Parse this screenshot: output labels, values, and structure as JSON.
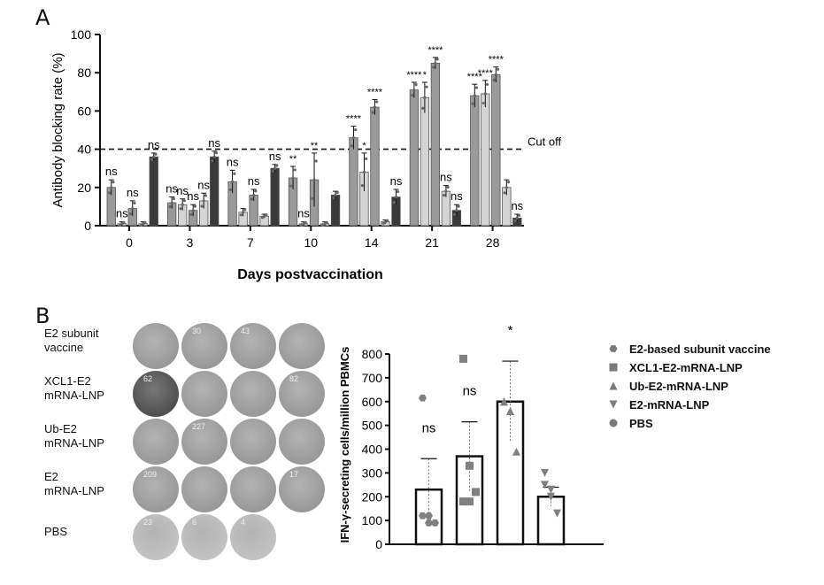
{
  "panel_a_letter": "A",
  "panel_b_letter": "B",
  "chart_data": [
    {
      "type": "bar",
      "panel": "A",
      "ylabel": "Antibody blocking rate (%)",
      "xlabel": "Days postvaccination",
      "categories": [
        "0",
        "3",
        "7",
        "10",
        "14",
        "21",
        "28"
      ],
      "ylim": [
        0,
        100
      ],
      "yticks": [
        0,
        20,
        40,
        60,
        80,
        100
      ],
      "cutoff": {
        "value": 40,
        "label": "Cut off"
      },
      "series": [
        {
          "values": [
            20,
            12,
            23,
            25,
            46,
            71,
            68
          ],
          "sem": [
            4,
            3,
            6,
            6,
            6,
            4,
            6
          ],
          "significance": [
            "ns",
            "ns",
            "ns",
            "**",
            "****",
            "****",
            "****"
          ]
        },
        {
          "values": [
            1,
            11,
            7,
            1,
            28,
            67,
            69
          ],
          "sem": [
            1,
            3,
            2,
            1,
            10,
            8,
            7
          ],
          "significance": [
            "ns",
            "ns",
            "",
            "ns",
            "*",
            "*",
            "****"
          ]
        },
        {
          "values": [
            9,
            8,
            16,
            24,
            62,
            85,
            79
          ],
          "sem": [
            4,
            3,
            3,
            14,
            4,
            3,
            4
          ],
          "significance": [
            "ns",
            "ns",
            "ns",
            "**",
            "****",
            "****",
            "****"
          ]
        },
        {
          "values": [
            1,
            13,
            5,
            1,
            2,
            18,
            20
          ],
          "sem": [
            1,
            4,
            1,
            1,
            1,
            3,
            4
          ],
          "significance": [
            "",
            "ns",
            "",
            "",
            "",
            "ns",
            ""
          ]
        },
        {
          "values": [
            36,
            36,
            30,
            16,
            15,
            8,
            4
          ],
          "sem": [
            2,
            3,
            2,
            2,
            4,
            3,
            2
          ],
          "significance": [
            "ns",
            "ns",
            "ns",
            "",
            "ns",
            "ns",
            "ns"
          ]
        }
      ]
    },
    {
      "type": "bar",
      "panel": "B",
      "ylabel": "IFN-γ-secreting cells/million PBMCs",
      "ylim": [
        0,
        800
      ],
      "yticks": [
        0,
        100,
        200,
        300,
        400,
        500,
        600,
        700,
        800
      ],
      "categories": [
        "E2-based subunit vaccine",
        "XCL1-E2-mRNA-LNP",
        "Ub-E2-mRNA-LNP",
        "E2-mRNA-LNP",
        "PBS"
      ],
      "values": [
        230,
        370,
        600,
        200,
        0
      ],
      "sem": [
        130,
        145,
        170,
        40,
        0
      ],
      "significance": [
        "ns",
        "ns",
        "*",
        "",
        ""
      ],
      "points": [
        [
          615,
          120,
          90,
          120,
          90
        ],
        [
          780,
          330,
          220,
          180,
          180
        ],
        [
          600,
          560,
          390,
          600,
          560
        ],
        [
          300,
          230,
          130,
          250,
          200
        ],
        []
      ]
    }
  ],
  "elispot": {
    "rows": [
      {
        "label": [
          "E2 subunit",
          "vaccine"
        ],
        "well_numbers": [
          "",
          "30",
          "43",
          ""
        ]
      },
      {
        "label": [
          "XCL1-E2",
          "mRNA-LNP"
        ],
        "well_numbers": [
          "62",
          "",
          "",
          "82"
        ]
      },
      {
        "label": [
          "Ub-E2",
          "mRNA-LNP"
        ],
        "well_numbers": [
          "",
          "227",
          "",
          ""
        ]
      },
      {
        "label": [
          "E2",
          "mRNA-LNP"
        ],
        "well_numbers": [
          "209",
          "",
          "",
          "17"
        ]
      },
      {
        "label": [
          "PBS"
        ],
        "well_numbers": [
          "23",
          "6",
          "4"
        ]
      }
    ]
  },
  "legend": [
    {
      "label": "E2-based subunit vaccine",
      "marker": "hexagon"
    },
    {
      "label": "XCL1-E2-mRNA-LNP",
      "marker": "square"
    },
    {
      "label": "Ub-E2-mRNA-LNP",
      "marker": "triangle-up"
    },
    {
      "label": "E2-mRNA-LNP",
      "marker": "triangle-down"
    },
    {
      "label": "PBS",
      "marker": "circle"
    }
  ],
  "colors": {
    "ink": "#111111",
    "bar_gray": "#9a9a9a",
    "bar_light": "#d4d4d4",
    "bar_dark": "#3a3a3a",
    "well": "#9c9c9c"
  }
}
